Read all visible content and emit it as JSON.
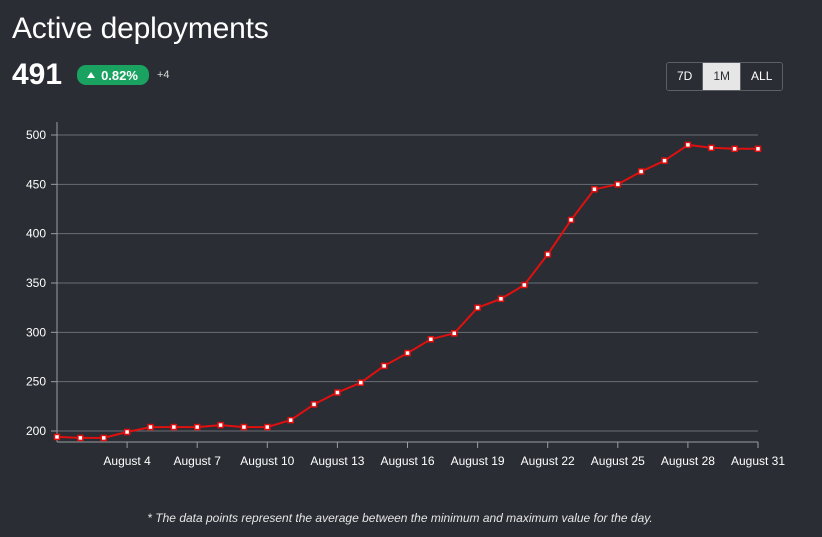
{
  "header": {
    "title": "Active deployments",
    "value": "491",
    "change": "0.82%",
    "delta": "+4"
  },
  "range": {
    "options": [
      "7D",
      "1M",
      "ALL"
    ],
    "selected": "1M"
  },
  "footnote": "* The data points represent the average between the minimum and maximum value for the day.",
  "colors": {
    "background": "#2a2d33",
    "line": "#e01010",
    "grid": "#6b6e74",
    "badge": "#1aa260"
  },
  "chart_data": {
    "type": "line",
    "title": "",
    "xlabel": "",
    "ylabel": "",
    "ylim": [
      190,
      505
    ],
    "yticks": [
      200,
      250,
      300,
      350,
      400,
      450,
      500
    ],
    "x": [
      "August 1",
      "August 2",
      "August 3",
      "August 4",
      "August 5",
      "August 6",
      "August 7",
      "August 8",
      "August 9",
      "August 10",
      "August 11",
      "August 12",
      "August 13",
      "August 14",
      "August 15",
      "August 16",
      "August 17",
      "August 18",
      "August 19",
      "August 20",
      "August 21",
      "August 22",
      "August 23",
      "August 24",
      "August 25",
      "August 26",
      "August 27",
      "August 28",
      "August 29",
      "August 30",
      "August 31"
    ],
    "xtick_labels": [
      "August 4",
      "August 7",
      "August 10",
      "August 13",
      "August 16",
      "August 19",
      "August 22",
      "August 25",
      "August 28",
      "August 31"
    ],
    "series": [
      {
        "values": [
          194,
          193,
          193,
          199,
          204,
          204,
          204,
          206,
          204,
          204,
          211,
          227,
          239,
          249,
          266,
          279,
          293,
          299,
          325,
          334,
          348,
          379,
          414,
          445,
          450,
          463,
          474,
          490,
          487,
          486,
          486
        ]
      }
    ],
    "grid": true,
    "legend": "none"
  }
}
